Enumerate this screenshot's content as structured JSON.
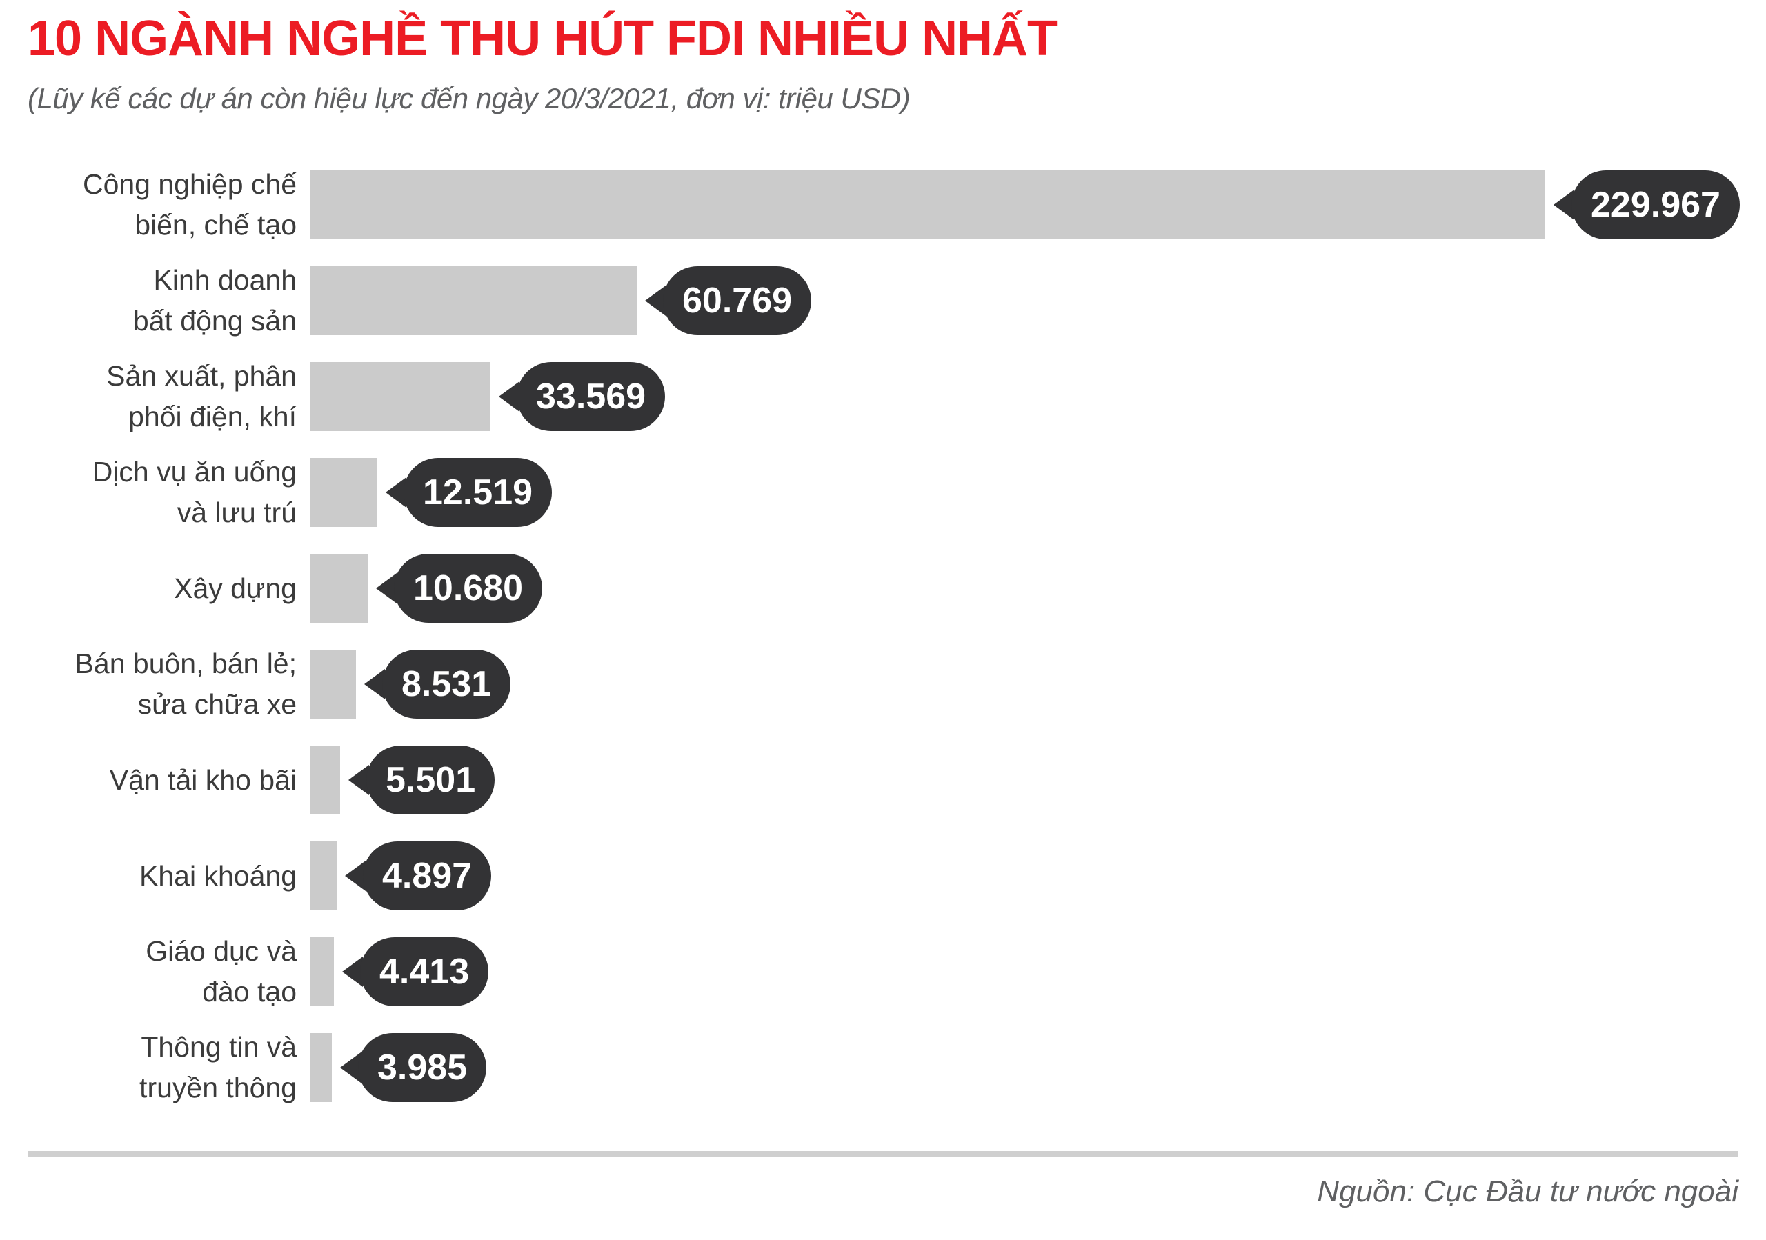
{
  "header": {
    "title": "10 NGÀNH NGHỀ THU HÚT FDI NHIỀU NHẤT",
    "subtitle": "(Lũy kế các dự án còn hiệu lực đến ngày 20/3/2021, đơn vị: triệu USD)"
  },
  "chart_data": {
    "type": "bar",
    "orientation": "horizontal",
    "title": "10 NGÀNH NGHỀ THU HÚT FDI NHIỀU NHẤT",
    "subtitle": "(Lũy kế các dự án còn hiệu lực đến ngày 20/3/2021, đơn vị: triệu USD)",
    "unit": "triệu USD",
    "categories": [
      "Công nghiệp chế\nbiến, chế tạo",
      "Kinh doanh\nbất động sản",
      "Sản xuất, phân\nphối điện, khí",
      "Dịch vụ ăn uống\nvà lưu trú",
      "Xây dựng",
      "Bán buôn, bán lẻ;\nsửa chữa xe",
      "Vận tải kho bãi",
      "Khai khoáng",
      "Giáo dục và\nđào tạo",
      "Thông tin và\ntruyền thông"
    ],
    "values": [
      229967,
      60769,
      33569,
      12519,
      10680,
      8531,
      5501,
      4897,
      4413,
      3985
    ],
    "value_labels": [
      "229.967",
      "60.769",
      "33.569",
      "12.519",
      "10.680",
      "8.531",
      "5.501",
      "4.897",
      "4.413",
      "3.985"
    ],
    "xlim": [
      0,
      230000
    ],
    "grid": false,
    "legend": false
  },
  "footer": {
    "source": "Nguồn: Cục Đầu tư nước ngoài"
  },
  "colors": {
    "title": "#ec1c24",
    "label": "#3b3b3b",
    "bar": "#cbcbcb",
    "bubble": "#333335",
    "divider": "#cfcfcf",
    "muted": "#5f6062"
  }
}
